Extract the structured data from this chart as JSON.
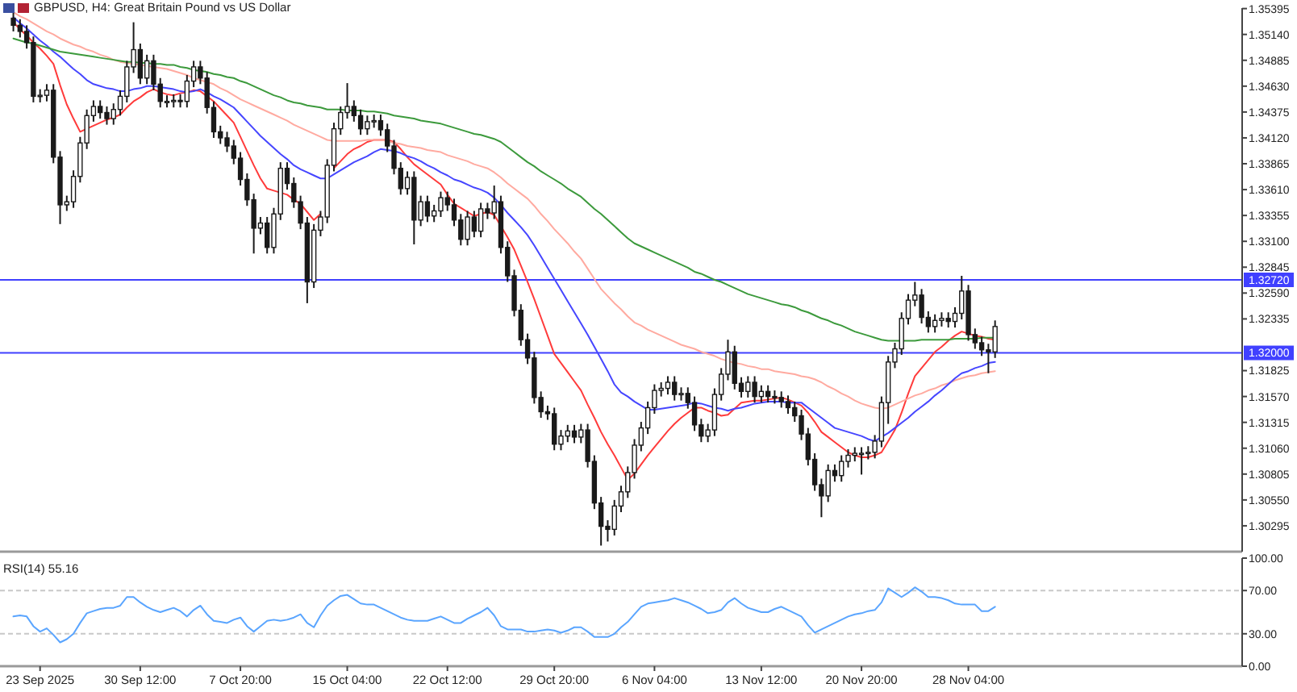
{
  "chart_data": [
    {
      "type": "candlestick",
      "title": "GBPUSD, H4:  Great Britain Pound vs US Dollar",
      "color": "#1a1a1a",
      "categories": [
        null,
        null,
        null,
        null,
        null,
        null,
        null,
        null,
        null,
        null,
        null,
        null,
        null,
        null,
        null,
        null,
        null,
        null,
        null,
        null,
        null,
        null,
        null,
        null,
        null,
        null,
        null,
        null,
        null,
        null,
        null,
        null,
        null,
        null,
        null,
        null,
        null,
        null,
        null,
        null,
        null,
        null,
        null,
        null,
        null,
        null,
        null,
        null,
        null,
        null,
        null,
        null,
        null,
        null,
        null,
        null,
        null,
        null,
        null,
        null,
        null,
        null,
        null,
        null,
        null,
        null,
        null,
        null,
        null,
        null,
        null,
        null,
        null,
        null,
        null,
        null,
        null,
        null,
        null,
        null,
        null,
        null,
        null,
        null,
        null,
        null,
        null,
        null,
        null,
        null,
        null,
        null,
        null,
        null,
        null,
        null,
        null,
        null,
        null,
        null,
        null,
        null,
        null,
        null,
        null,
        null,
        null,
        null,
        null,
        null,
        null,
        null,
        null,
        null,
        null,
        null,
        null,
        null,
        null,
        null,
        null,
        null,
        null,
        null,
        null,
        null,
        null,
        null,
        null,
        null,
        null,
        null,
        null,
        null,
        null,
        null,
        null,
        null,
        null,
        null,
        null,
        null,
        null,
        null,
        null,
        null,
        null,
        null
      ],
      "ohlc": [
        [
          1.353,
          1.3536,
          1.3517,
          1.3523
        ],
        [
          1.3523,
          1.3529,
          1.3511,
          1.3517
        ],
        [
          1.3517,
          1.3523,
          1.35,
          1.3506
        ],
        [
          1.3506,
          1.3512,
          1.3447,
          1.3453
        ],
        [
          1.3453,
          1.346,
          1.3447,
          1.3454
        ],
        [
          1.3454,
          1.3465,
          1.3448,
          1.3459
        ],
        [
          1.3459,
          1.3465,
          1.3387,
          1.3393
        ],
        [
          1.3393,
          1.3399,
          1.3327,
          1.3346
        ],
        [
          1.3346,
          1.3355,
          1.334,
          1.3349
        ],
        [
          1.3349,
          1.338,
          1.3343,
          1.3374
        ],
        [
          1.3374,
          1.3413,
          1.3368,
          1.3407
        ],
        [
          1.3407,
          1.344,
          1.3401,
          1.3434
        ],
        [
          1.3434,
          1.3449,
          1.3428,
          1.3443
        ],
        [
          1.3443,
          1.3449,
          1.3431,
          1.3437
        ],
        [
          1.3437,
          1.3443,
          1.3425,
          1.3431
        ],
        [
          1.3431,
          1.3446,
          1.3425,
          1.344
        ],
        [
          1.344,
          1.3459,
          1.3434,
          1.3453
        ],
        [
          1.3453,
          1.3488,
          1.3447,
          1.3482
        ],
        [
          1.3482,
          1.3526,
          1.3476,
          1.3499
        ],
        [
          1.3499,
          1.3505,
          1.3465,
          1.3471
        ],
        [
          1.3471,
          1.3494,
          1.3465,
          1.3488
        ],
        [
          1.3488,
          1.3494,
          1.3459,
          1.3465
        ],
        [
          1.3465,
          1.3471,
          1.3442,
          1.3448
        ],
        [
          1.3448,
          1.3454,
          1.3442,
          1.3448
        ],
        [
          1.3448,
          1.3455,
          1.3442,
          1.3449
        ],
        [
          1.3449,
          1.3455,
          1.3442,
          1.3448
        ],
        [
          1.3448,
          1.3474,
          1.3442,
          1.3468
        ],
        [
          1.3468,
          1.3488,
          1.3462,
          1.3482
        ],
        [
          1.3482,
          1.3488,
          1.3465,
          1.3471
        ],
        [
          1.3471,
          1.3477,
          1.3436,
          1.3442
        ],
        [
          1.3442,
          1.3448,
          1.3412,
          1.3418
        ],
        [
          1.3418,
          1.3424,
          1.3406,
          1.3412
        ],
        [
          1.3412,
          1.3418,
          1.3398,
          1.3404
        ],
        [
          1.3404,
          1.341,
          1.3386,
          1.3392
        ],
        [
          1.3392,
          1.3398,
          1.3365,
          1.3371
        ],
        [
          1.3371,
          1.3377,
          1.3345,
          1.3351
        ],
        [
          1.3351,
          1.3357,
          1.3298,
          1.3323
        ],
        [
          1.3323,
          1.3334,
          1.3317,
          1.3328
        ],
        [
          1.3328,
          1.3334,
          1.3298,
          1.3304
        ],
        [
          1.3304,
          1.3343,
          1.3298,
          1.3337
        ],
        [
          1.3337,
          1.3388,
          1.3331,
          1.3382
        ],
        [
          1.3382,
          1.3388,
          1.3361,
          1.3367
        ],
        [
          1.3367,
          1.3373,
          1.3343,
          1.3349
        ],
        [
          1.3349,
          1.3355,
          1.3322,
          1.3328
        ],
        [
          1.3328,
          1.3334,
          1.3249,
          1.327
        ],
        [
          1.327,
          1.3327,
          1.3264,
          1.3321
        ],
        [
          1.3321,
          1.334,
          1.3315,
          1.3334
        ],
        [
          1.3334,
          1.3391,
          1.3328,
          1.3385
        ],
        [
          1.3385,
          1.3427,
          1.3379,
          1.3421
        ],
        [
          1.3421,
          1.3443,
          1.3415,
          1.3437
        ],
        [
          1.3437,
          1.3466,
          1.3431,
          1.3443
        ],
        [
          1.3443,
          1.3449,
          1.3428,
          1.3434
        ],
        [
          1.3434,
          1.344,
          1.3415,
          1.3421
        ],
        [
          1.3421,
          1.3434,
          1.3415,
          1.3428
        ],
        [
          1.3428,
          1.3435,
          1.3422,
          1.3429
        ],
        [
          1.3429,
          1.3435,
          1.3414,
          1.342
        ],
        [
          1.342,
          1.3426,
          1.3398,
          1.3404
        ],
        [
          1.3404,
          1.341,
          1.3376,
          1.3382
        ],
        [
          1.3382,
          1.3388,
          1.3356,
          1.3362
        ],
        [
          1.3362,
          1.3379,
          1.3356,
          1.3373
        ],
        [
          1.3373,
          1.3379,
          1.3307,
          1.3331
        ],
        [
          1.3331,
          1.3355,
          1.3325,
          1.3349
        ],
        [
          1.3349,
          1.3355,
          1.3329,
          1.3335
        ],
        [
          1.3335,
          1.3346,
          1.3329,
          1.334
        ],
        [
          1.334,
          1.3359,
          1.3334,
          1.3353
        ],
        [
          1.3353,
          1.3359,
          1.334,
          1.3346
        ],
        [
          1.3346,
          1.3352,
          1.3325,
          1.3331
        ],
        [
          1.3331,
          1.3337,
          1.3306,
          1.3312
        ],
        [
          1.3312,
          1.334,
          1.3306,
          1.3334
        ],
        [
          1.3334,
          1.334,
          1.3314,
          1.332
        ],
        [
          1.332,
          1.3348,
          1.3314,
          1.3342
        ],
        [
          1.3342,
          1.3348,
          1.3332,
          1.3338
        ],
        [
          1.3338,
          1.3365,
          1.3332,
          1.3349
        ],
        [
          1.3349,
          1.3355,
          1.3298,
          1.3304
        ],
        [
          1.3304,
          1.331,
          1.327,
          1.3276
        ],
        [
          1.3276,
          1.3282,
          1.3236,
          1.3242
        ],
        [
          1.3242,
          1.3248,
          1.3207,
          1.3213
        ],
        [
          1.3213,
          1.3219,
          1.3189,
          1.3195
        ],
        [
          1.3195,
          1.3201,
          1.315,
          1.3156
        ],
        [
          1.3156,
          1.3162,
          1.3136,
          1.3142
        ],
        [
          1.3142,
          1.3148,
          1.3134,
          1.314
        ],
        [
          1.314,
          1.3146,
          1.3104,
          1.311
        ],
        [
          1.311,
          1.3124,
          1.3104,
          1.3118
        ],
        [
          1.3118,
          1.3129,
          1.3112,
          1.3123
        ],
        [
          1.3123,
          1.3129,
          1.3111,
          1.3117
        ],
        [
          1.3117,
          1.313,
          1.3111,
          1.3124
        ],
        [
          1.3124,
          1.313,
          1.3087,
          1.3093
        ],
        [
          1.3093,
          1.3099,
          1.3046,
          1.3052
        ],
        [
          1.3052,
          1.3058,
          1.301,
          1.3029
        ],
        [
          1.3029,
          1.3035,
          1.3014,
          1.3026
        ],
        [
          1.3026,
          1.3055,
          1.302,
          1.3049
        ],
        [
          1.3049,
          1.3069,
          1.3043,
          1.3063
        ],
        [
          1.3063,
          1.3088,
          1.3057,
          1.3082
        ],
        [
          1.3082,
          1.3115,
          1.3076,
          1.3109
        ],
        [
          1.3109,
          1.3132,
          1.3103,
          1.3126
        ],
        [
          1.3126,
          1.3152,
          1.312,
          1.3146
        ],
        [
          1.3146,
          1.3169,
          1.314,
          1.3163
        ],
        [
          1.3163,
          1.3171,
          1.3157,
          1.3165
        ],
        [
          1.3165,
          1.3177,
          1.3159,
          1.3171
        ],
        [
          1.3171,
          1.3177,
          1.3153,
          1.3159
        ],
        [
          1.3159,
          1.3166,
          1.3153,
          1.316
        ],
        [
          1.316,
          1.3166,
          1.3145,
          1.3151
        ],
        [
          1.3151,
          1.3157,
          1.3123,
          1.3129
        ],
        [
          1.3129,
          1.3135,
          1.3112,
          1.3118
        ],
        [
          1.3118,
          1.313,
          1.3112,
          1.3124
        ],
        [
          1.3124,
          1.3165,
          1.3118,
          1.3159
        ],
        [
          1.3159,
          1.3185,
          1.3153,
          1.3179
        ],
        [
          1.3179,
          1.3213,
          1.3173,
          1.3201
        ],
        [
          1.3201,
          1.3207,
          1.3164,
          1.317
        ],
        [
          1.317,
          1.3176,
          1.3156,
          1.3162
        ],
        [
          1.3162,
          1.3177,
          1.3156,
          1.3171
        ],
        [
          1.3171,
          1.3177,
          1.3151,
          1.3157
        ],
        [
          1.3157,
          1.3168,
          1.3151,
          1.3162
        ],
        [
          1.3162,
          1.3168,
          1.3151,
          1.3157
        ],
        [
          1.3157,
          1.3163,
          1.315,
          1.3156
        ],
        [
          1.3156,
          1.3162,
          1.3146,
          1.3152
        ],
        [
          1.3152,
          1.3158,
          1.314,
          1.3146
        ],
        [
          1.3146,
          1.3152,
          1.3132,
          1.3138
        ],
        [
          1.3138,
          1.3144,
          1.3114,
          1.312
        ],
        [
          1.312,
          1.3126,
          1.3089,
          1.3095
        ],
        [
          1.3095,
          1.3101,
          1.3064,
          1.307
        ],
        [
          1.307,
          1.3076,
          1.3038,
          1.3059
        ],
        [
          1.3059,
          1.309,
          1.3053,
          1.3084
        ],
        [
          1.3084,
          1.309,
          1.3073,
          1.3079
        ],
        [
          1.3079,
          1.3099,
          1.3073,
          1.3093
        ],
        [
          1.3093,
          1.3105,
          1.3087,
          1.3099
        ],
        [
          1.3099,
          1.3107,
          1.3093,
          1.3101
        ],
        [
          1.3101,
          1.3107,
          1.308,
          1.3101
        ],
        [
          1.3101,
          1.3108,
          1.3095,
          1.3102
        ],
        [
          1.3102,
          1.3119,
          1.3096,
          1.3113
        ],
        [
          1.3113,
          1.3157,
          1.3107,
          1.3151
        ],
        [
          1.3151,
          1.3197,
          1.313,
          1.3191
        ],
        [
          1.3191,
          1.321,
          1.3185,
          1.3204
        ],
        [
          1.3204,
          1.324,
          1.3198,
          1.3234
        ],
        [
          1.3234,
          1.3258,
          1.3228,
          1.3252
        ],
        [
          1.3252,
          1.327,
          1.3246,
          1.3257
        ],
        [
          1.3257,
          1.3263,
          1.3229,
          1.3235
        ],
        [
          1.3235,
          1.3241,
          1.322,
          1.3226
        ],
        [
          1.3226,
          1.3238,
          1.322,
          1.3232
        ],
        [
          1.3232,
          1.324,
          1.3226,
          1.3234
        ],
        [
          1.3234,
          1.324,
          1.3225,
          1.3231
        ],
        [
          1.3231,
          1.3245,
          1.3225,
          1.3239
        ],
        [
          1.3239,
          1.3276,
          1.3233,
          1.3261
        ],
        [
          1.3261,
          1.3267,
          1.3212,
          1.3218
        ],
        [
          1.3218,
          1.3224,
          1.3204,
          1.321
        ],
        [
          1.321,
          1.3216,
          1.3197,
          1.3203
        ],
        [
          1.3203,
          1.3209,
          1.318,
          1.3201
        ],
        [
          1.3201,
          1.3232,
          1.3195,
          1.3226
        ]
      ],
      "series": [
        {
          "type": "line",
          "color": "#ff3b3b",
          "values": [
            1.3526,
            1.3519,
            1.3513,
            1.3506,
            1.35,
            1.3493,
            1.3485,
            1.3464,
            1.3445,
            1.3431,
            1.3418,
            1.3421,
            1.3424,
            1.3427,
            1.343,
            1.3432,
            1.3435,
            1.3442,
            1.3448,
            1.3452,
            1.3457,
            1.346,
            1.3457,
            1.3455,
            1.3454,
            1.3456,
            1.3457,
            1.3459,
            1.3458,
            1.3453,
            1.3448,
            1.3441,
            1.3434,
            1.3427,
            1.3413,
            1.3399,
            1.3385,
            1.3372,
            1.3362,
            1.336,
            1.3358,
            1.3356,
            1.3351,
            1.3347,
            1.3339,
            1.3331,
            1.3337,
            null,
            1.3382,
            1.3389,
            1.3396,
            1.3401,
            1.3404,
            1.3408,
            1.341,
            1.341,
            1.341,
            1.3408,
            1.3401,
            1.3393,
            1.3386,
            1.3381,
            1.3376,
            1.3371,
            1.3366,
            1.3356,
            1.3347,
            1.3343,
            1.3339,
            1.3335,
            1.3337,
            1.3339,
            1.3336,
            1.3325,
            1.3314,
            1.3302,
            1.3286,
            1.327,
            1.3253,
            1.3235,
            1.3217,
            1.3199,
            1.319,
            1.3181,
            1.3172,
            1.3163,
            1.3149,
            1.3136,
            1.3122,
            1.311,
            1.3099,
            1.3087,
            1.3075,
            1.3081,
            1.309,
            1.3099,
            1.3107,
            1.3115,
            1.3123,
            1.313,
            1.3136,
            1.3141,
            1.3146,
            1.3146,
            1.3143,
            1.3141,
            1.3138,
            1.3139,
            1.3145,
            1.3151,
            1.3152,
            1.3153,
            1.3153,
            1.3154,
            1.3155,
            1.3156,
            1.3154,
            1.3151,
            1.3148,
            1.3141,
            1.3132,
            1.3122,
            1.3117,
            1.3112,
            1.3107,
            1.3102,
            1.3099,
            1.3097,
            1.3097,
            1.3099,
            1.3102,
            1.3113,
            1.3124,
            1.3141,
            1.316,
            1.3177,
            1.3185,
            1.3193,
            1.3201,
            1.3206,
            1.3212,
            1.3217,
            1.3221,
            1.3219,
            1.3217,
            1.3216,
            1.3214,
            1.3213
          ]
        },
        {
          "type": "line",
          "color": "#ffaaa0",
          "values": [
            1.3536,
            1.3532,
            1.3529,
            1.3525,
            1.3521,
            1.3517,
            1.3514,
            1.351,
            1.3507,
            1.3504,
            1.3502,
            1.3499,
            1.3497,
            1.3494,
            1.3492,
            1.3489,
            1.3487,
            1.3486,
            1.3485,
            1.3484,
            1.3483,
            1.3482,
            1.3481,
            1.348,
            1.3478,
            1.3476,
            1.3474,
            1.3471,
            1.3469,
            1.3467,
            1.3465,
            1.3461,
            1.3458,
            1.3454,
            1.345,
            1.3447,
            1.3444,
            1.3441,
            1.3438,
            1.3435,
            1.3432,
            1.3429,
            1.3425,
            1.3422,
            1.3419,
            1.3416,
            1.3413,
            1.341,
            1.3409,
            1.3409,
            1.3409,
            1.3409,
            1.3409,
            1.341,
            1.341,
            1.341,
            1.3409,
            1.3407,
            1.3406,
            1.3404,
            1.3403,
            1.3402,
            1.34,
            1.3399,
            1.3398,
            1.3395,
            1.3393,
            1.3391,
            1.3389,
            1.3386,
            1.3384,
            1.3382,
            1.3378,
            1.3373,
            1.3367,
            1.3362,
            1.3357,
            1.3352,
            1.3345,
            1.3337,
            1.333,
            1.3322,
            1.3315,
            1.3308,
            1.33,
            1.3293,
            1.3283,
            1.3273,
            1.3263,
            1.3256,
            1.3249,
            1.3243,
            1.3236,
            1.323,
            1.3227,
            1.3223,
            1.322,
            1.3217,
            1.3214,
            1.3211,
            1.3208,
            1.3206,
            1.3204,
            1.3201,
            1.3199,
            1.3197,
            1.3194,
            1.3192,
            1.319,
            1.3189,
            1.3187,
            1.3186,
            1.3184,
            1.3184,
            1.3182,
            1.3181,
            1.318,
            1.3179,
            1.3177,
            1.3176,
            1.3174,
            1.3171,
            1.3167,
            1.3164,
            1.316,
            1.3157,
            1.3153,
            1.315,
            1.3148,
            1.3146,
            1.3145,
            1.3146,
            1.3149,
            1.3152,
            1.3155,
            1.3158,
            1.316,
            1.3163,
            1.3165,
            1.3168,
            1.317,
            1.3173,
            1.3175,
            1.3177,
            1.3178,
            1.318,
            1.3181,
            1.3182
          ]
        },
        {
          "type": "line",
          "color": "#4646ff",
          "values": [
            1.3531,
            1.3525,
            1.352,
            1.3514,
            1.3508,
            1.3503,
            1.3497,
            1.3492,
            1.3486,
            1.348,
            1.3475,
            1.3469,
            1.3465,
            1.3463,
            1.3461,
            1.346,
            1.3458,
            1.3458,
            1.346,
            1.3461,
            1.3463,
            1.3463,
            1.3462,
            1.3461,
            1.346,
            1.3458,
            1.3457,
            1.3458,
            1.346,
            1.3457,
            1.3453,
            1.345,
            1.3446,
            1.3442,
            1.3435,
            1.3428,
            1.3421,
            1.3414,
            1.3408,
            1.3402,
            1.3396,
            1.3391,
            1.3385,
            1.3381,
            1.3378,
            1.3375,
            1.3372,
            1.3372,
            1.3376,
            1.338,
            1.3384,
            1.3388,
            1.3391,
            1.3394,
            1.3398,
            1.3401,
            1.34,
            1.3399,
            1.3397,
            1.3394,
            1.3392,
            1.3389,
            1.3385,
            1.3382,
            1.3378,
            1.3375,
            1.3371,
            1.3369,
            1.3366,
            1.3363,
            1.3361,
            1.3358,
            1.3353,
            1.3346,
            1.3338,
            1.3331,
            1.3324,
            1.3316,
            1.3306,
            1.3295,
            1.3284,
            1.3273,
            1.3262,
            1.3251,
            1.324,
            1.3229,
            1.3218,
            1.3206,
            1.3194,
            1.3182,
            1.3169,
            1.3161,
            1.3157,
            1.3152,
            1.3148,
            1.3144,
            1.3144,
            1.3145,
            1.3146,
            1.3147,
            1.3148,
            1.3149,
            1.3151,
            1.315,
            1.3148,
            1.3146,
            1.3145,
            1.3143,
            1.3145,
            1.3146,
            1.3148,
            1.315,
            1.3151,
            1.3152,
            1.3152,
            1.3152,
            1.3151,
            1.3151,
            1.3151,
            1.3146,
            1.3141,
            1.3136,
            1.3131,
            1.3126,
            1.3124,
            1.3122,
            1.312,
            1.3118,
            1.3115,
            1.3113,
            1.3117,
            1.3121,
            1.3126,
            1.3131,
            1.3136,
            1.3142,
            1.3147,
            1.3152,
            1.3158,
            1.3163,
            1.3169,
            1.3175,
            1.318,
            1.3182,
            1.3185,
            1.3187,
            1.319,
            1.3191
          ]
        },
        {
          "type": "line",
          "color": "#3c9a3c",
          "values": [
            1.351,
            1.3508,
            1.3506,
            1.3505,
            1.3503,
            1.3501,
            1.3499,
            1.3497,
            1.3496,
            1.3495,
            1.3494,
            1.3493,
            1.3492,
            1.3491,
            1.349,
            1.3489,
            1.3488,
            1.3487,
            1.3487,
            1.3486,
            1.3486,
            1.3485,
            1.3485,
            1.3484,
            1.3484,
            1.3482,
            1.3481,
            1.3479,
            1.3478,
            1.3477,
            1.3475,
            1.3474,
            1.3472,
            1.3471,
            1.3468,
            1.3466,
            1.3463,
            1.346,
            1.3457,
            1.3454,
            1.3452,
            1.3449,
            1.3447,
            1.3446,
            1.3444,
            1.3443,
            1.3442,
            1.344,
            1.344,
            1.344,
            1.3439,
            1.3439,
            1.3439,
            1.3438,
            1.3438,
            1.3437,
            1.3436,
            1.3434,
            1.3433,
            1.3432,
            1.3431,
            1.3429,
            1.3428,
            1.3427,
            1.3426,
            1.3424,
            1.3422,
            1.342,
            1.3418,
            1.3416,
            1.3415,
            1.3413,
            1.3411,
            1.3408,
            1.3403,
            1.3398,
            1.3393,
            1.3388,
            1.3384,
            1.3379,
            1.3375,
            1.3371,
            1.3367,
            1.3362,
            1.3358,
            1.3354,
            1.3348,
            1.3342,
            1.3337,
            1.3331,
            1.3325,
            1.3319,
            1.3313,
            1.3308,
            1.3305,
            1.3302,
            1.3299,
            1.3296,
            1.3293,
            1.329,
            1.3287,
            1.3284,
            1.328,
            1.3278,
            1.3275,
            1.3272,
            1.327,
            1.3267,
            1.3264,
            1.3261,
            1.3258,
            1.3256,
            1.3254,
            1.3252,
            1.325,
            1.3248,
            1.3247,
            1.3245,
            1.3242,
            1.324,
            1.3237,
            1.3234,
            1.3232,
            1.3229,
            1.3227,
            1.3224,
            1.3221,
            1.3219,
            1.3217,
            1.3215,
            1.3213,
            1.3212,
            1.3212,
            1.3212,
            1.3212,
            1.3212,
            1.3213,
            1.3213,
            1.3213,
            1.3213,
            1.3213,
            1.3214,
            1.3214,
            1.3214,
            1.3214,
            1.3215,
            1.3215,
            1.3215
          ]
        }
      ],
      "ylim": [
        1.3004,
        1.354
      ],
      "yticks": [
        {
          "value": 1.30295,
          "label": "1.30295"
        },
        {
          "value": 1.3055,
          "label": "1.30550"
        },
        {
          "value": 1.30805,
          "label": "1.30805"
        },
        {
          "value": 1.3106,
          "label": "1.31060"
        },
        {
          "value": 1.31315,
          "label": "1.31315"
        },
        {
          "value": 1.3157,
          "label": "1.31570"
        },
        {
          "value": 1.31825,
          "label": "1.31825"
        },
        {
          "value": 1.32335,
          "label": "1.32335"
        },
        {
          "value": 1.3259,
          "label": "1.32590"
        },
        {
          "value": 1.32845,
          "label": "1.32845"
        },
        {
          "value": 1.331,
          "label": "1.33100"
        },
        {
          "value": 1.33355,
          "label": "1.33355"
        },
        {
          "value": 1.3361,
          "label": "1.33610"
        },
        {
          "value": 1.33865,
          "label": "1.33865"
        },
        {
          "value": 1.3412,
          "label": "1.34120"
        },
        {
          "value": 1.34375,
          "label": "1.34375"
        },
        {
          "value": 1.3463,
          "label": "1.34630"
        },
        {
          "value": 1.34885,
          "label": "1.34885"
        },
        {
          "value": 1.3514,
          "label": "1.35140"
        },
        {
          "value": 1.35395,
          "label": "1.35395"
        }
      ],
      "tick_labels": "y",
      "ref_lines": [
        {
          "axis": "y",
          "value": 1.3272,
          "label": "1.32720",
          "color": "#4040ff"
        },
        {
          "axis": "y",
          "value": 1.32,
          "label": "1.32000",
          "color": "#4040ff"
        }
      ]
    },
    {
      "type": "line",
      "title": "RSI(14) 55.16",
      "color": "#5aa5ff",
      "categories": [
        null,
        null,
        null,
        null,
        "23 Sep 2025",
        null,
        null,
        null,
        null,
        null,
        null,
        null,
        null,
        null,
        null,
        null,
        null,
        null,
        null,
        "30 Sep 12:00",
        null,
        null,
        null,
        null,
        null,
        null,
        null,
        null,
        null,
        null,
        null,
        null,
        null,
        null,
        "7 Oct 20:00",
        null,
        null,
        null,
        null,
        null,
        null,
        null,
        null,
        null,
        null,
        null,
        null,
        null,
        null,
        null,
        "15 Oct 04:00",
        null,
        null,
        null,
        null,
        null,
        null,
        null,
        null,
        null,
        null,
        null,
        null,
        null,
        null,
        "22 Oct 12:00",
        null,
        null,
        null,
        null,
        null,
        null,
        null,
        null,
        null,
        null,
        null,
        null,
        null,
        null,
        null,
        "29 Oct 20:00",
        null,
        null,
        null,
        null,
        null,
        null,
        null,
        null,
        null,
        null,
        null,
        null,
        null,
        null,
        "6 Nov 04:00",
        null,
        null,
        null,
        null,
        null,
        null,
        null,
        null,
        null,
        null,
        null,
        null,
        null,
        null,
        null,
        "13 Nov 12:00",
        null,
        null,
        null,
        null,
        null,
        null,
        null,
        null,
        null,
        null,
        null,
        null,
        null,
        null,
        "20 Nov 20:00",
        null,
        null,
        null,
        null,
        null,
        null,
        null,
        null,
        null,
        null,
        null,
        null,
        null,
        null,
        null,
        "28 Nov 04:00",
        null,
        null,
        null,
        null
      ],
      "values": [
        46,
        47,
        46,
        37,
        32,
        35,
        29,
        22,
        25,
        30,
        40,
        49,
        51,
        53,
        54,
        54,
        56,
        64,
        64,
        59,
        55,
        52,
        50,
        52,
        54,
        51,
        46,
        52,
        56,
        48,
        42,
        41,
        40,
        43,
        45,
        37,
        32,
        37,
        42,
        43,
        42,
        43,
        45,
        48,
        40,
        36,
        47,
        56,
        61,
        65,
        66,
        62,
        58,
        57,
        57,
        54,
        51,
        48,
        45,
        43,
        42,
        42,
        42,
        44,
        46,
        43,
        40,
        40,
        44,
        47,
        50,
        54,
        47,
        37,
        34,
        34,
        34,
        32,
        32,
        33,
        34,
        33,
        31,
        33,
        36,
        36,
        32,
        27,
        27,
        27,
        30,
        36,
        41,
        48,
        55,
        58,
        59,
        60,
        61,
        63,
        61,
        59,
        56,
        53,
        49,
        50,
        52,
        59,
        63,
        58,
        54,
        52,
        50,
        50,
        53,
        55,
        52,
        49,
        46,
        38,
        31,
        34,
        37,
        40,
        43,
        46,
        48,
        49,
        51,
        52,
        59,
        72,
        68,
        64,
        68,
        73,
        69,
        64,
        64,
        63,
        61,
        58,
        57,
        57,
        57,
        51,
        51,
        55
      ],
      "ylim": [
        0,
        100
      ],
      "yticks": [
        {
          "value": 0,
          "label": "0.00"
        },
        {
          "value": 30,
          "label": "30.00"
        },
        {
          "value": 70,
          "label": "70.00"
        },
        {
          "value": 100,
          "label": "100.00"
        }
      ],
      "ref_lines": [
        {
          "axis": "y",
          "value": 30,
          "color": "#c8c8c8",
          "line_style": "dashed"
        },
        {
          "axis": "y",
          "value": 70,
          "color": "#c8c8c8",
          "line_style": "dashed"
        }
      ]
    }
  ]
}
